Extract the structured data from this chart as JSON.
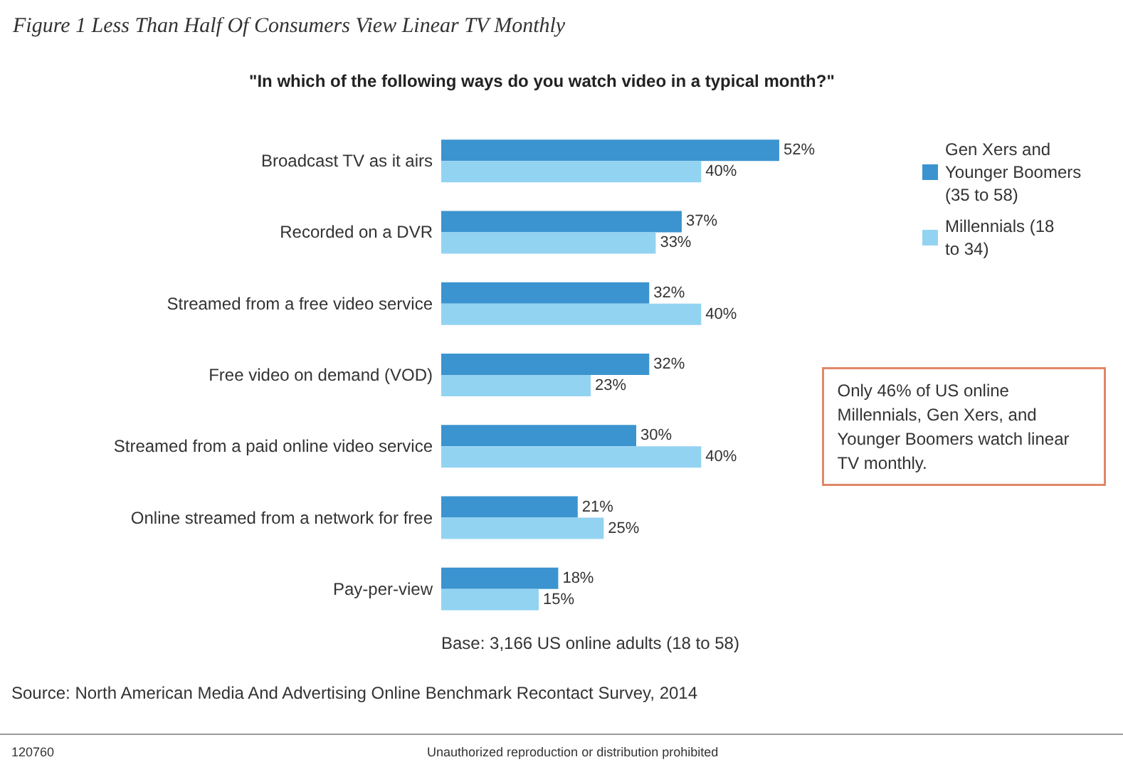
{
  "chart_data": {
    "type": "bar",
    "orientation": "horizontal",
    "title": "Figure 1 Less Than Half Of Consumers View Linear TV Monthly",
    "subtitle": "\"In which of the following ways do you watch video in a typical month?\"",
    "categories": [
      "Broadcast TV as it airs",
      "Recorded on a DVR",
      "Streamed from a free video service",
      "Free video on demand (VOD)",
      "Streamed from a paid online video service",
      "Online streamed from a network for free",
      "Pay-per-view"
    ],
    "series": [
      {
        "name": "Gen Xers and Younger Boomers (35 to 58)",
        "color": "#3b94cf",
        "values": [
          52,
          37,
          32,
          32,
          30,
          21,
          18
        ],
        "value_labels": [
          "52%",
          "37%",
          "32%",
          "32%",
          "30%",
          "21%",
          "18%"
        ]
      },
      {
        "name": "Millennials (18 to 34)",
        "color": "#93d3f2",
        "values": [
          40,
          33,
          40,
          23,
          40,
          25,
          15
        ],
        "value_labels": [
          "40%",
          "33%",
          "40%",
          "23%",
          "40%",
          "25%",
          "15%"
        ]
      }
    ],
    "legend": "top right",
    "annotations": [
      "Only 46% of US online Millennials, Gen Xers, and Younger Boomers watch linear TV monthly.",
      "Base: 3,166 US online adults (18 to 58)",
      "Source: North American Media And Advertising Online Benchmark Recontact Survey, 2014",
      "120760",
      "Unauthorized reproduction or distribution prohibited"
    ]
  }
}
